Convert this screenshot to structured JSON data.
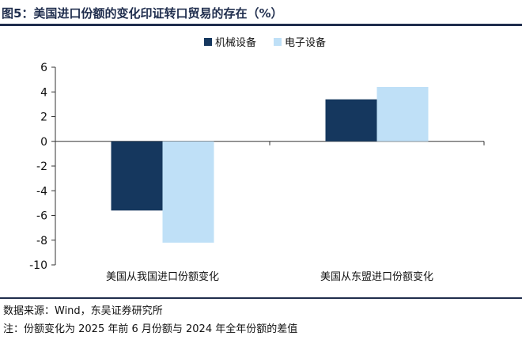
{
  "title": "图5：美国进口份额的变化印证转口贸易的存在（%）",
  "source": "数据来源：Wind，东吴证券研究所",
  "footnote": "注：份额变化为 2025 年前 6 月份额与 2024 年全年份额的差值",
  "colors": {
    "series_1": "#15375e",
    "series_2": "#bfe0f7",
    "axis": "#333333"
  },
  "chart_data": {
    "type": "bar",
    "categories": [
      "美国从我国进口份额变化",
      "美国从东盟进口份额变化"
    ],
    "series": [
      {
        "name": "机械设备",
        "values": [
          -5.6,
          3.4
        ]
      },
      {
        "name": "电子设备",
        "values": [
          -8.2,
          4.4
        ]
      }
    ],
    "ylim": [
      -10,
      6
    ],
    "yticks": [
      -10,
      -8,
      -6,
      -4,
      -2,
      0,
      2,
      4,
      6
    ],
    "legend": "top-right",
    "grid": false
  }
}
